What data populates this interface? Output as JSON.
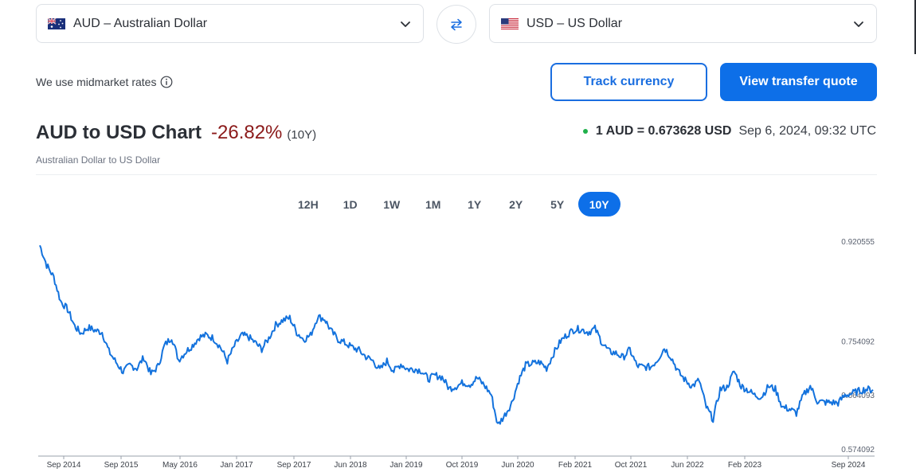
{
  "from": {
    "code": "AUD",
    "name": "Australian Dollar",
    "label": "AUD – Australian Dollar",
    "flag": "australia-flag-icon"
  },
  "to": {
    "code": "USD",
    "name": "US Dollar",
    "label": "USD – US Dollar",
    "flag": "usa-flag-icon"
  },
  "note": {
    "text": "We use midmarket rates"
  },
  "buttons": {
    "track": "Track currency",
    "quote": "View transfer quote"
  },
  "header": {
    "title": "AUD to USD Chart",
    "change": "-26.82%",
    "period": "(10Y)",
    "subtitle": "Australian Dollar to US Dollar",
    "rate": "1 AUD = 0.673628 USD",
    "timestamp": "Sep 6, 2024, 09:32 UTC"
  },
  "tabs": [
    {
      "label": "12H",
      "active": false
    },
    {
      "label": "1D",
      "active": false
    },
    {
      "label": "1W",
      "active": false
    },
    {
      "label": "1M",
      "active": false
    },
    {
      "label": "1Y",
      "active": false
    },
    {
      "label": "2Y",
      "active": false
    },
    {
      "label": "5Y",
      "active": false
    },
    {
      "label": "10Y",
      "active": true
    }
  ],
  "colors": {
    "accent": "#0d6fe8",
    "negative": "#8b1a1a",
    "live": "#1fb04a",
    "line": "#1372dd"
  },
  "chart_data": {
    "type": "line",
    "title": "",
    "xlabel": "",
    "ylabel": "",
    "x_ticks": [
      "Sep 2014",
      "Sep 2015",
      "May 2016",
      "Jan 2017",
      "Sep 2017",
      "Jun 2018",
      "Jan 2019",
      "Oct 2019",
      "Jun 2020",
      "Feb 2021",
      "Oct 2021",
      "Jun 2022",
      "Feb 2023",
      "Sep 2024"
    ],
    "y_ticks": [
      "0.920555",
      "0.754092",
      "0.664093",
      "0.574092"
    ],
    "ylim": [
      0.574092,
      0.920555
    ],
    "xlim": [
      "2014-09-06",
      "2024-09-06"
    ],
    "series": [
      {
        "x": [
          "2014-09",
          "2014-10",
          "2014-11",
          "2014-12",
          "2015-01",
          "2015-02",
          "2015-03",
          "2015-04",
          "2015-05",
          "2015-06",
          "2015-07",
          "2015-08",
          "2015-09",
          "2015-10",
          "2015-11",
          "2015-12",
          "2016-01",
          "2016-02",
          "2016-03",
          "2016-04",
          "2016-05",
          "2016-06",
          "2016-07",
          "2016-08",
          "2016-09",
          "2016-10",
          "2016-11",
          "2016-12",
          "2017-01",
          "2017-02",
          "2017-03",
          "2017-04",
          "2017-05",
          "2017-06",
          "2017-07",
          "2017-08",
          "2017-09",
          "2017-10",
          "2017-11",
          "2017-12",
          "2018-01",
          "2018-02",
          "2018-03",
          "2018-04",
          "2018-05",
          "2018-06",
          "2018-07",
          "2018-08",
          "2018-09",
          "2018-10",
          "2018-11",
          "2018-12",
          "2019-01",
          "2019-02",
          "2019-03",
          "2019-04",
          "2019-05",
          "2019-06",
          "2019-07",
          "2019-08",
          "2019-09",
          "2019-10",
          "2019-11",
          "2019-12",
          "2020-01",
          "2020-02",
          "2020-03",
          "2020-04",
          "2020-05",
          "2020-06",
          "2020-07",
          "2020-08",
          "2020-09",
          "2020-10",
          "2020-11",
          "2020-12",
          "2021-01",
          "2021-02",
          "2021-03",
          "2021-04",
          "2021-05",
          "2021-06",
          "2021-07",
          "2021-08",
          "2021-09",
          "2021-10",
          "2021-11",
          "2021-12",
          "2022-01",
          "2022-02",
          "2022-03",
          "2022-04",
          "2022-05",
          "2022-06",
          "2022-07",
          "2022-08",
          "2022-09",
          "2022-10",
          "2022-11",
          "2022-12",
          "2023-01",
          "2023-02",
          "2023-03",
          "2023-04",
          "2023-05",
          "2023-06",
          "2023-07",
          "2023-08",
          "2023-09",
          "2023-10",
          "2023-11",
          "2023-12",
          "2024-01",
          "2024-02",
          "2024-03",
          "2024-04",
          "2024-05",
          "2024-06",
          "2024-07",
          "2024-08",
          "2024-09"
        ],
        "values": [
          0.915,
          0.882,
          0.862,
          0.822,
          0.808,
          0.78,
          0.768,
          0.778,
          0.773,
          0.77,
          0.738,
          0.72,
          0.704,
          0.715,
          0.71,
          0.728,
          0.7,
          0.713,
          0.748,
          0.762,
          0.724,
          0.737,
          0.748,
          0.762,
          0.765,
          0.76,
          0.745,
          0.722,
          0.747,
          0.765,
          0.763,
          0.753,
          0.742,
          0.76,
          0.782,
          0.79,
          0.794,
          0.77,
          0.758,
          0.765,
          0.796,
          0.792,
          0.772,
          0.758,
          0.752,
          0.745,
          0.74,
          0.729,
          0.722,
          0.707,
          0.722,
          0.705,
          0.717,
          0.708,
          0.709,
          0.706,
          0.692,
          0.698,
          0.695,
          0.676,
          0.68,
          0.686,
          0.683,
          0.694,
          0.682,
          0.666,
          0.615,
          0.632,
          0.652,
          0.69,
          0.715,
          0.718,
          0.72,
          0.71,
          0.735,
          0.755,
          0.767,
          0.775,
          0.775,
          0.77,
          0.776,
          0.753,
          0.738,
          0.735,
          0.728,
          0.741,
          0.714,
          0.712,
          0.712,
          0.725,
          0.744,
          0.728,
          0.704,
          0.69,
          0.68,
          0.69,
          0.645,
          0.625,
          0.675,
          0.678,
          0.705,
          0.68,
          0.674,
          0.665,
          0.662,
          0.68,
          0.675,
          0.645,
          0.642,
          0.635,
          0.665,
          0.68,
          0.655,
          0.653,
          0.653,
          0.652,
          0.665,
          0.668,
          0.672,
          0.675,
          0.674
        ]
      }
    ]
  }
}
